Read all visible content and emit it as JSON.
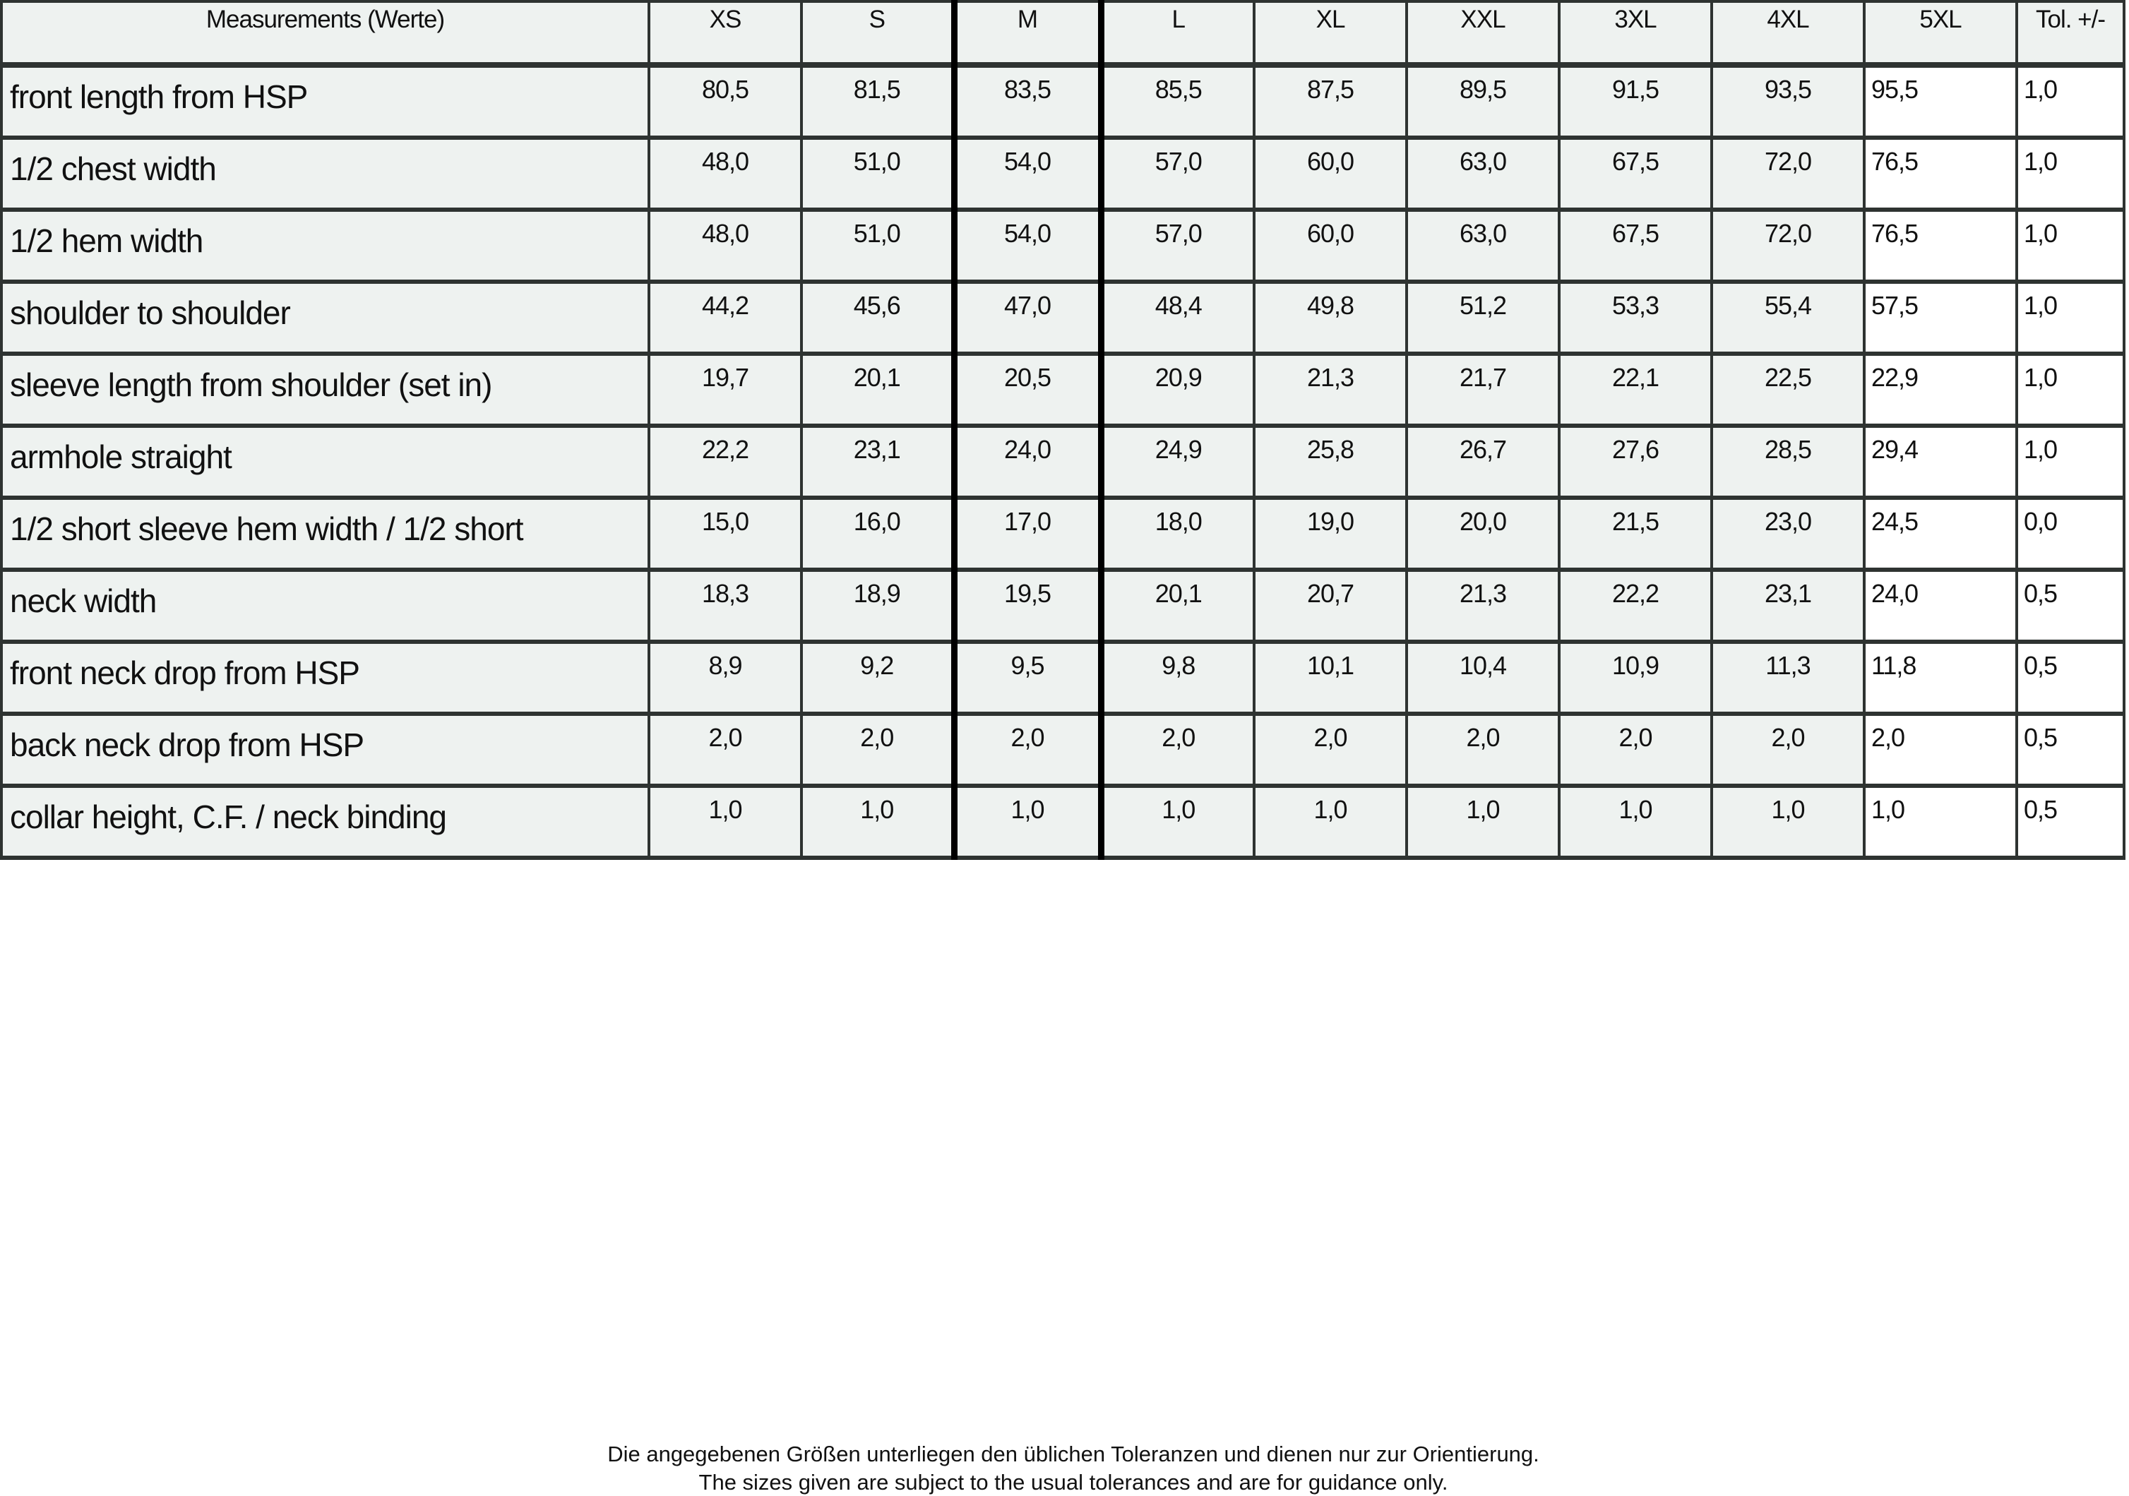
{
  "table": {
    "headers": [
      "Measurements (Werte)",
      "XS",
      "S",
      "M",
      "L",
      "XL",
      "XXL",
      "3XL",
      "4XL",
      "5XL",
      "Tol. +/-"
    ],
    "rows": [
      {
        "label": "front length from HSP",
        "values": [
          "80,5",
          "81,5",
          "83,5",
          "85,5",
          "87,5",
          "89,5",
          "91,5",
          "93,5",
          "95,5",
          "1,0"
        ]
      },
      {
        "label": "1/2 chest width",
        "values": [
          "48,0",
          "51,0",
          "54,0",
          "57,0",
          "60,0",
          "63,0",
          "67,5",
          "72,0",
          "76,5",
          "1,0"
        ]
      },
      {
        "label": "1/2 hem width",
        "values": [
          "48,0",
          "51,0",
          "54,0",
          "57,0",
          "60,0",
          "63,0",
          "67,5",
          "72,0",
          "76,5",
          "1,0"
        ]
      },
      {
        "label": "shoulder to shoulder",
        "values": [
          "44,2",
          "45,6",
          "47,0",
          "48,4",
          "49,8",
          "51,2",
          "53,3",
          "55,4",
          "57,5",
          "1,0"
        ]
      },
      {
        "label": "sleeve length from shoulder (set in)",
        "values": [
          "19,7",
          "20,1",
          "20,5",
          "20,9",
          "21,3",
          "21,7",
          "22,1",
          "22,5",
          "22,9",
          "1,0"
        ]
      },
      {
        "label": "armhole straight",
        "values": [
          "22,2",
          "23,1",
          "24,0",
          "24,9",
          "25,8",
          "26,7",
          "27,6",
          "28,5",
          "29,4",
          "1,0"
        ]
      },
      {
        "label": "1/2 short sleeve hem width / 1/2 short",
        "values": [
          "15,0",
          "16,0",
          "17,0",
          "18,0",
          "19,0",
          "20,0",
          "21,5",
          "23,0",
          "24,5",
          "0,0"
        ]
      },
      {
        "label": "neck width",
        "values": [
          "18,3",
          "18,9",
          "19,5",
          "20,1",
          "20,7",
          "21,3",
          "22,2",
          "23,1",
          "24,0",
          "0,5"
        ]
      },
      {
        "label": "front neck drop from HSP",
        "values": [
          "8,9",
          "9,2",
          "9,5",
          "9,8",
          "10,1",
          "10,4",
          "10,9",
          "11,3",
          "11,8",
          "0,5"
        ]
      },
      {
        "label": "back neck drop from HSP",
        "values": [
          "2,0",
          "2,0",
          "2,0",
          "2,0",
          "2,0",
          "2,0",
          "2,0",
          "2,0",
          "2,0",
          "0,5"
        ]
      },
      {
        "label": "collar height, C.F. / neck binding",
        "values": [
          "1,0",
          "1,0",
          "1,0",
          "1,0",
          "1,0",
          "1,0",
          "1,0",
          "1,0",
          "1,0",
          "0,5"
        ]
      }
    ]
  },
  "footer": {
    "line_de": "Die angegebenen Größen unterliegen den üblichen Toleranzen und dienen nur zur Orientierung.",
    "line_en": "The sizes given are subject to the usual tolerances and are for guidance only."
  }
}
